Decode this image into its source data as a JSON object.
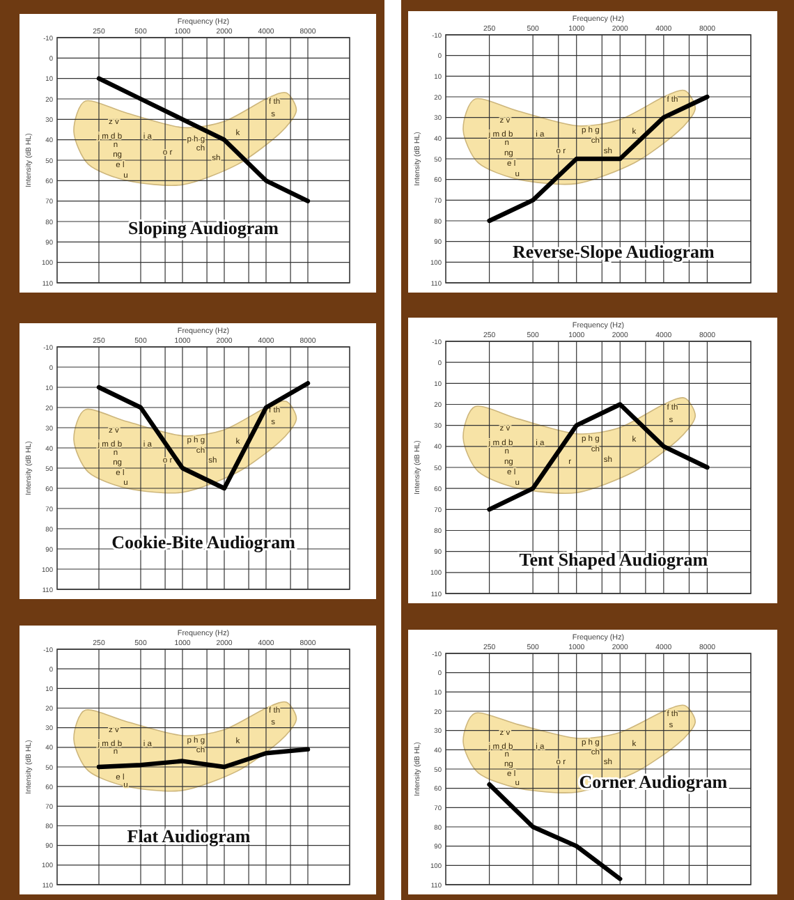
{
  "chart_data": [
    {
      "type": "line",
      "title": "Sloping Audiogram",
      "xlabel": "Frequency (Hz)",
      "ylabel": "Intensity (dB HL)",
      "log": "x",
      "grid": true,
      "xlim": [
        125,
        16000
      ],
      "ylim": [
        110,
        -10
      ],
      "xticks": [
        250,
        500,
        {
          "value": 750,
          "label": null
        },
        1000,
        {
          "value": 1500,
          "label": null
        },
        2000,
        {
          "value": 3000,
          "label": null
        },
        4000,
        {
          "value": 6000,
          "label": null
        },
        8000
      ],
      "yticks": [
        -10,
        0,
        10,
        20,
        30,
        40,
        50,
        60,
        70,
        80,
        90,
        100,
        110
      ],
      "x": [
        250,
        500,
        1000,
        2000,
        4000,
        8000
      ],
      "series": [
        {
          "color": "#000000",
          "values": [
            10,
            20,
            30,
            40,
            60,
            70
          ]
        }
      ],
      "annotations": [
        "z v",
        "j m d b",
        "n",
        "ng",
        "e l",
        "u",
        "i a",
        "o r",
        "p h g",
        "ch",
        "sh",
        "k",
        "f th",
        "s"
      ]
    },
    {
      "type": "line",
      "title": "Reverse-Slope Audiogram",
      "xlabel": "Frequency (Hz)",
      "ylabel": "Intensity (dB HL)",
      "log": "x",
      "grid": true,
      "xlim": [
        125,
        16000
      ],
      "ylim": [
        110,
        -10
      ],
      "xticks": [
        250,
        500,
        {
          "value": 750,
          "label": null
        },
        1000,
        {
          "value": 1500,
          "label": null
        },
        2000,
        {
          "value": 3000,
          "label": null
        },
        4000,
        {
          "value": 6000,
          "label": null
        },
        8000
      ],
      "yticks": [
        -10,
        0,
        10,
        20,
        30,
        40,
        50,
        60,
        70,
        80,
        90,
        100,
        110
      ],
      "x": [
        250,
        500,
        1000,
        2000,
        4000,
        8000
      ],
      "series": [
        {
          "color": "#000000",
          "values": [
            80,
            70,
            50,
            50,
            30,
            20
          ]
        }
      ],
      "annotations": [
        "z v",
        "j m d b",
        "n",
        "ng",
        "e l",
        "u",
        "i a",
        "o r",
        "p h g",
        "ch",
        "sh",
        "k",
        "f th"
      ]
    },
    {
      "type": "line",
      "title": "Cookie-Bite Audiogram",
      "xlabel": "Frequency (Hz)",
      "ylabel": "Intensity (dB HL)",
      "log": "x",
      "grid": true,
      "xlim": [
        125,
        16000
      ],
      "ylim": [
        110,
        -10
      ],
      "xticks": [
        250,
        500,
        {
          "value": 750,
          "label": null
        },
        1000,
        {
          "value": 1500,
          "label": null
        },
        2000,
        {
          "value": 3000,
          "label": null
        },
        4000,
        {
          "value": 6000,
          "label": null
        },
        8000
      ],
      "yticks": [
        -10,
        0,
        10,
        20,
        30,
        40,
        50,
        60,
        70,
        80,
        90,
        100,
        110
      ],
      "x": [
        250,
        500,
        1000,
        2000,
        4000,
        8000
      ],
      "series": [
        {
          "color": "#000000",
          "values": [
            10,
            20,
            50,
            60,
            20,
            8
          ]
        }
      ],
      "annotations": [
        "z v",
        "j m d b",
        "n",
        "ng",
        "e l",
        "u",
        "i a",
        "o r",
        "p h g",
        "ch",
        "sh",
        "k",
        "f th",
        "s"
      ]
    },
    {
      "type": "line",
      "title": "Tent Shaped Audiogram",
      "xlabel": "Frequency (Hz)",
      "ylabel": "Intensity (dB HL)",
      "log": "x",
      "grid": true,
      "xlim": [
        125,
        16000
      ],
      "ylim": [
        110,
        -10
      ],
      "xticks": [
        250,
        500,
        {
          "value": 750,
          "label": null
        },
        1000,
        {
          "value": 1500,
          "label": null
        },
        2000,
        {
          "value": 3000,
          "label": null
        },
        4000,
        {
          "value": 6000,
          "label": null
        },
        8000
      ],
      "yticks": [
        -10,
        0,
        10,
        20,
        30,
        40,
        50,
        60,
        70,
        80,
        90,
        100,
        110
      ],
      "x": [
        250,
        500,
        1000,
        2000,
        4000,
        8000
      ],
      "series": [
        {
          "color": "#000000",
          "values": [
            70,
            60,
            30,
            20,
            40,
            50
          ]
        }
      ],
      "annotations": [
        "z v",
        "j m d b",
        "n",
        "ng",
        "e l",
        "u",
        "i a",
        "r",
        "p h g",
        "ch",
        "sh",
        "k",
        "f th",
        "s"
      ]
    },
    {
      "type": "line",
      "title": "Flat Audiogram",
      "xlabel": "Frequency (Hz)",
      "ylabel": "Intensity (dB HL)",
      "log": "x",
      "grid": true,
      "xlim": [
        125,
        16000
      ],
      "ylim": [
        110,
        -10
      ],
      "xticks": [
        250,
        500,
        {
          "value": 750,
          "label": null
        },
        1000,
        {
          "value": 1500,
          "label": null
        },
        2000,
        {
          "value": 3000,
          "label": null
        },
        4000,
        {
          "value": 6000,
          "label": null
        },
        8000
      ],
      "yticks": [
        -10,
        0,
        10,
        20,
        30,
        40,
        50,
        60,
        70,
        80,
        90,
        100,
        110
      ],
      "x": [
        250,
        500,
        1000,
        2000,
        4000,
        8000
      ],
      "series": [
        {
          "color": "#000000",
          "values": [
            50,
            49,
            47,
            50,
            43,
            41
          ]
        }
      ],
      "annotations": [
        "z v",
        "j m d b",
        "n",
        "e l",
        "u",
        "i a",
        "p h g",
        "ch",
        "k",
        "f th",
        "s"
      ]
    },
    {
      "type": "line",
      "title": "Corner Audiogram",
      "xlabel": "Frequency (Hz)",
      "ylabel": "Intensity (dB HL)",
      "log": "x",
      "grid": true,
      "xlim": [
        125,
        16000
      ],
      "ylim": [
        110,
        -10
      ],
      "xticks": [
        250,
        500,
        {
          "value": 750,
          "label": null
        },
        1000,
        {
          "value": 1500,
          "label": null
        },
        2000,
        {
          "value": 3000,
          "label": null
        },
        4000,
        {
          "value": 6000,
          "label": null
        },
        8000
      ],
      "yticks": [
        -10,
        0,
        10,
        20,
        30,
        40,
        50,
        60,
        70,
        80,
        90,
        100,
        110
      ],
      "x": [
        250,
        500,
        1000,
        2000
      ],
      "series": [
        {
          "color": "#000000",
          "values": [
            58,
            80,
            90,
            107
          ]
        }
      ],
      "annotations": [
        "z v",
        "j m d b",
        "n",
        "ng",
        "e l",
        "u",
        "i a",
        "o r",
        "p h g",
        "ch",
        "sh",
        "k",
        "f th",
        "s"
      ]
    }
  ]
}
